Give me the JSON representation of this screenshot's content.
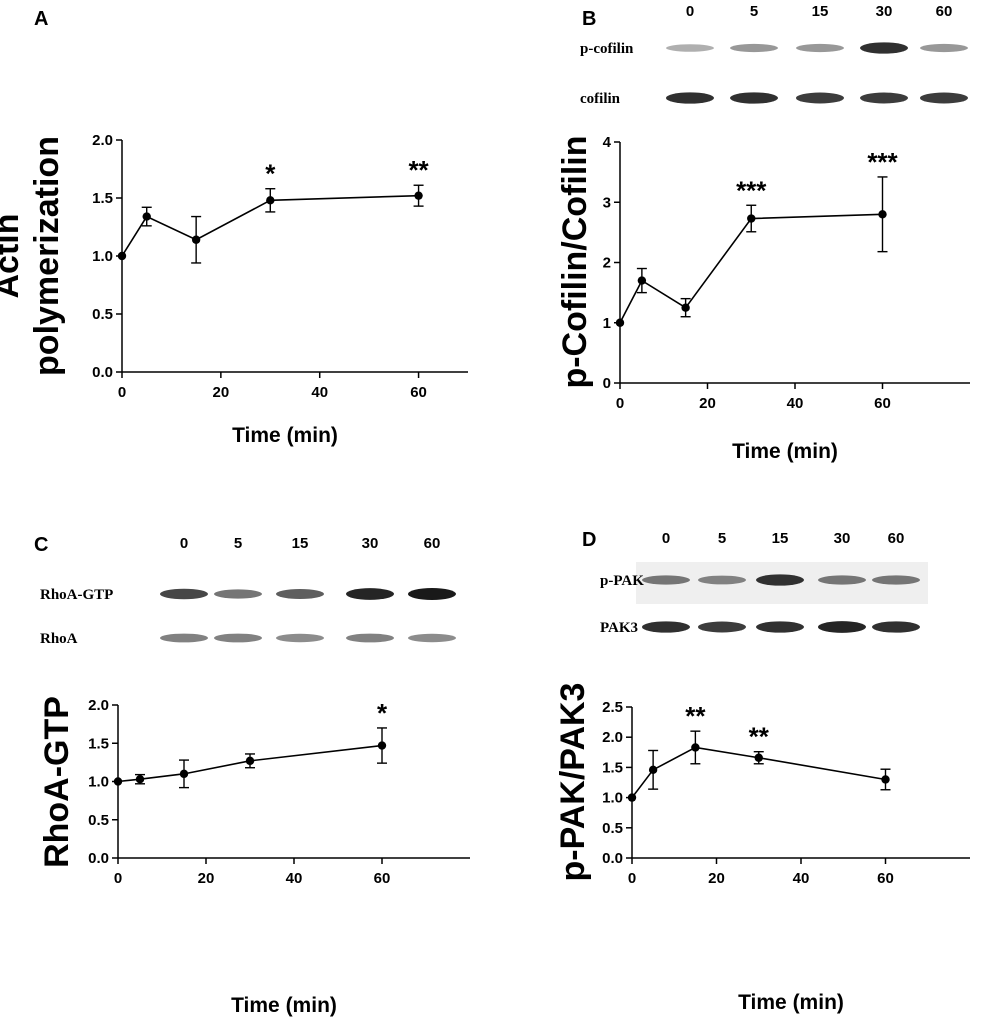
{
  "panels": [
    {
      "letter": "A"
    },
    {
      "letter": "B"
    },
    {
      "letter": "C"
    },
    {
      "letter": "D"
    }
  ],
  "blots": [
    {
      "panel": "B",
      "timepoints": [
        "0",
        "5",
        "15",
        "30",
        "60"
      ],
      "rows": [
        {
          "label": "p-cofilin",
          "intensity": [
            0.35,
            0.45,
            0.45,
            0.9,
            0.45
          ]
        },
        {
          "label": "cofilin",
          "intensity": [
            0.9,
            0.9,
            0.85,
            0.85,
            0.85
          ]
        }
      ]
    },
    {
      "panel": "C",
      "timepoints": [
        "0",
        "5",
        "15",
        "30",
        "60"
      ],
      "rows": [
        {
          "label": "RhoA-GTP",
          "intensity": [
            0.8,
            0.6,
            0.7,
            0.95,
            1.0
          ]
        },
        {
          "label": "RhoA",
          "intensity": [
            0.55,
            0.55,
            0.5,
            0.55,
            0.5
          ]
        }
      ]
    },
    {
      "panel": "D",
      "timepoints": [
        "0",
        "5",
        "15",
        "30",
        "60"
      ],
      "rows": [
        {
          "label": "p-PAK",
          "intensity": [
            0.6,
            0.55,
            0.9,
            0.6,
            0.6
          ]
        },
        {
          "label": "PAK3",
          "intensity": [
            0.9,
            0.85,
            0.9,
            0.95,
            0.9
          ]
        }
      ]
    }
  ],
  "chart_data": [
    {
      "panel": "A",
      "type": "line",
      "title": "",
      "xlabel": "Time (min)",
      "ylabel_lines": [
        "Actin",
        "polymerization"
      ],
      "x": [
        0,
        5,
        15,
        30,
        60
      ],
      "y": [
        1.0,
        1.34,
        1.14,
        1.48,
        1.52
      ],
      "err": [
        0,
        0.08,
        0.2,
        0.1,
        0.09
      ],
      "significance": [
        "",
        "",
        "",
        "*",
        "**"
      ],
      "xlim": [
        0,
        70
      ],
      "ylim": [
        0,
        2.0
      ],
      "xticks": [
        0,
        20,
        40,
        60
      ],
      "yticks": [
        0,
        0.5,
        1.0,
        1.5,
        2.0
      ],
      "ytick_labels": [
        "0.0",
        "0.5",
        "1.0",
        "1.5",
        "2.0"
      ]
    },
    {
      "panel": "B",
      "type": "line",
      "title": "",
      "xlabel": "Time (min)",
      "ylabel_lines": [
        "p-Cofilin/Cofilin"
      ],
      "x": [
        0,
        5,
        15,
        30,
        60
      ],
      "y": [
        1.0,
        1.7,
        1.25,
        2.73,
        2.8
      ],
      "err": [
        0,
        0.2,
        0.15,
        0.22,
        0.62
      ],
      "significance": [
        "",
        "",
        "",
        "***",
        "***"
      ],
      "xlim": [
        0,
        80
      ],
      "ylim": [
        0,
        4
      ],
      "xticks": [
        0,
        20,
        40,
        60
      ],
      "yticks": [
        0,
        1,
        2,
        3,
        4
      ],
      "ytick_labels": [
        "0",
        "1",
        "2",
        "3",
        "4"
      ]
    },
    {
      "panel": "C",
      "type": "line",
      "title": "",
      "xlabel": "Time (min)",
      "ylabel_lines": [
        "RhoA-GTP"
      ],
      "x": [
        0,
        5,
        15,
        30,
        60
      ],
      "y": [
        1.0,
        1.03,
        1.1,
        1.27,
        1.47
      ],
      "err": [
        0,
        0.06,
        0.18,
        0.09,
        0.23
      ],
      "significance": [
        "",
        "",
        "",
        "",
        "*"
      ],
      "xlim": [
        0,
        80
      ],
      "ylim": [
        0,
        2.0
      ],
      "xticks": [
        0,
        20,
        40,
        60
      ],
      "yticks": [
        0,
        0.5,
        1.0,
        1.5,
        2.0
      ],
      "ytick_labels": [
        "0.0",
        "0.5",
        "1.0",
        "1.5",
        "2.0"
      ]
    },
    {
      "panel": "D",
      "type": "line",
      "title": "",
      "xlabel": "Time (min)",
      "ylabel_lines": [
        "p-PAK/PAK3"
      ],
      "x": [
        0,
        5,
        15,
        30,
        60
      ],
      "y": [
        1.0,
        1.46,
        1.83,
        1.66,
        1.3
      ],
      "err": [
        0,
        0.32,
        0.27,
        0.1,
        0.17
      ],
      "significance": [
        "",
        "",
        "**",
        "**",
        ""
      ],
      "xlim": [
        0,
        80
      ],
      "ylim": [
        0,
        2.5
      ],
      "xticks": [
        0,
        20,
        40,
        60
      ],
      "yticks": [
        0,
        0.5,
        1.0,
        1.5,
        2.0,
        2.5
      ],
      "ytick_labels": [
        "0.0",
        "0.5",
        "1.0",
        "1.5",
        "2.0",
        "2.5"
      ]
    }
  ]
}
